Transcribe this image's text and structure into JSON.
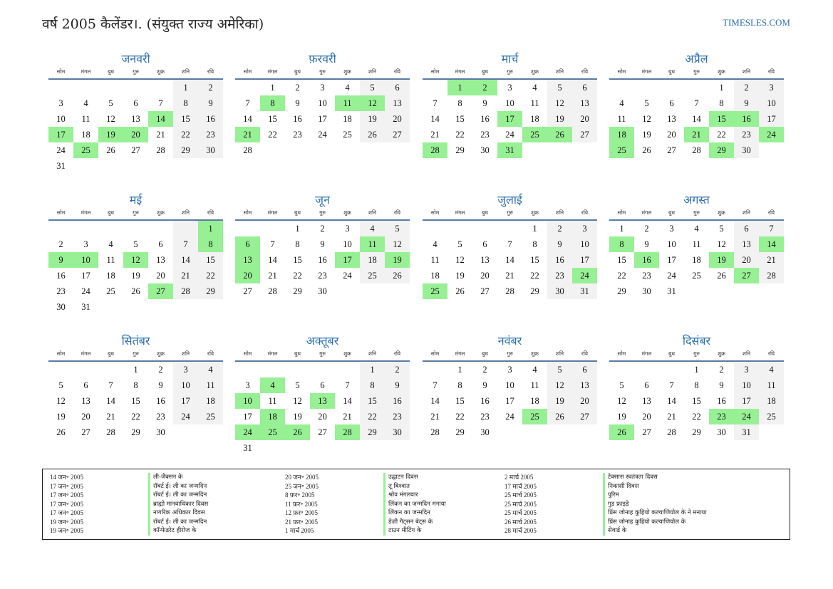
{
  "header": {
    "title": "वर्ष 2005 कैलेंडर।. (संयुक्त राज्य अमेरिका)",
    "site": "TIMESLES.COM"
  },
  "colors": {
    "accent": "#2a6fb0",
    "holiday": "#98f095",
    "weekend": "#f2f2f2",
    "rule": "#5a7ba6"
  },
  "weekdays": [
    "सोम",
    "मंगल",
    "बुध",
    "गुरु",
    "शुक्र",
    "शनि",
    "रवि"
  ],
  "months": [
    {
      "name": "जनवरी",
      "offset": 5,
      "days": 31,
      "holidays": [
        14,
        17,
        19,
        20,
        25
      ]
    },
    {
      "name": "फ़रवरी",
      "offset": 1,
      "days": 28,
      "holidays": [
        8,
        11,
        12,
        21
      ]
    },
    {
      "name": "मार्च",
      "offset": 1,
      "days": 31,
      "holidays": [
        1,
        2,
        17,
        25,
        26,
        28,
        31
      ]
    },
    {
      "name": "अप्रैल",
      "offset": 4,
      "days": 30,
      "holidays": [
        15,
        16,
        18,
        21,
        24,
        25,
        29
      ]
    },
    {
      "name": "मई",
      "offset": 6,
      "days": 31,
      "holidays": [
        1,
        8,
        9,
        10,
        12,
        27
      ]
    },
    {
      "name": "जून",
      "offset": 2,
      "days": 30,
      "holidays": [
        6,
        11,
        13,
        17,
        19,
        20
      ]
    },
    {
      "name": "जुलाई",
      "offset": 4,
      "days": 31,
      "holidays": [
        24,
        25
      ]
    },
    {
      "name": "अगस्त",
      "offset": 0,
      "days": 31,
      "holidays": [
        8,
        14,
        16,
        19,
        27
      ]
    },
    {
      "name": "सितंबर",
      "offset": 3,
      "days": 30,
      "holidays": []
    },
    {
      "name": "अक्तूबर",
      "offset": 5,
      "days": 31,
      "holidays": [
        4,
        10,
        13,
        18,
        24,
        25,
        26,
        28
      ]
    },
    {
      "name": "नवंबर",
      "offset": 1,
      "days": 30,
      "holidays": [
        25
      ]
    },
    {
      "name": "दिसंबर",
      "offset": 3,
      "days": 31,
      "holidays": [
        23,
        24,
        26
      ]
    }
  ],
  "holiday_columns": [
    [
      {
        "date": "14 जन॰ 2005",
        "name": "ली-जैक्सन के"
      },
      {
        "date": "17 जन॰ 2005",
        "name": "रॉबर्ट ई। ली का जन्मदिन"
      },
      {
        "date": "17 जन॰ 2005",
        "name": "रॉबर्ट ई। ली का जन्मदिन"
      },
      {
        "date": "17 जन॰ 2005",
        "name": "ब्राह्मो मानवाधिकार दिवस"
      },
      {
        "date": "17 जन॰ 2005",
        "name": "नागरिक अधिकार दिवस"
      },
      {
        "date": "19 जन॰ 2005",
        "name": "रॉबर्ट ई। ली का जन्मदिन"
      },
      {
        "date": "19 जन॰ 2005",
        "name": "कॉन्फेडरेट हीरोज के"
      }
    ],
    [
      {
        "date": "20 जन॰ 2005",
        "name": "उद्घाटन दिवस"
      },
      {
        "date": "25 जन॰ 2005",
        "name": "तू बिश्वात"
      },
      {
        "date": "8 फ़र॰ 2005",
        "name": "श्रोव मंगलवार"
      },
      {
        "date": "11 फ़र॰ 2005",
        "name": "लिंकन का जन्मदिन मनाया"
      },
      {
        "date": "12 फ़र॰ 2005",
        "name": "लिंकन का जन्मदिन"
      },
      {
        "date": "21 फ़र॰ 2005",
        "name": "डेज़ी गैट्सन बेट्स के"
      },
      {
        "date": "1 मार्च 2005",
        "name": "टाउन मीटिंग के"
      }
    ],
    [
      {
        "date": "2 मार्च 2005",
        "name": "टेक्सास स्वतंत्रता दिवस"
      },
      {
        "date": "17 मार्च 2005",
        "name": "निकासी दिवस"
      },
      {
        "date": "25 मार्च 2005",
        "name": "पुरिम"
      },
      {
        "date": "25 मार्च 2005",
        "name": "गुड फ्राइडे"
      },
      {
        "date": "25 मार्च 2005",
        "name": "प्रिंस जोनाह कुहियो कल्याणियोल के ने मनाया"
      },
      {
        "date": "26 मार्च 2005",
        "name": "प्रिंस जोनाह कुहियो कल्याणियोल के"
      },
      {
        "date": "28 मार्च 2005",
        "name": "सेवार्ड के"
      }
    ]
  ]
}
